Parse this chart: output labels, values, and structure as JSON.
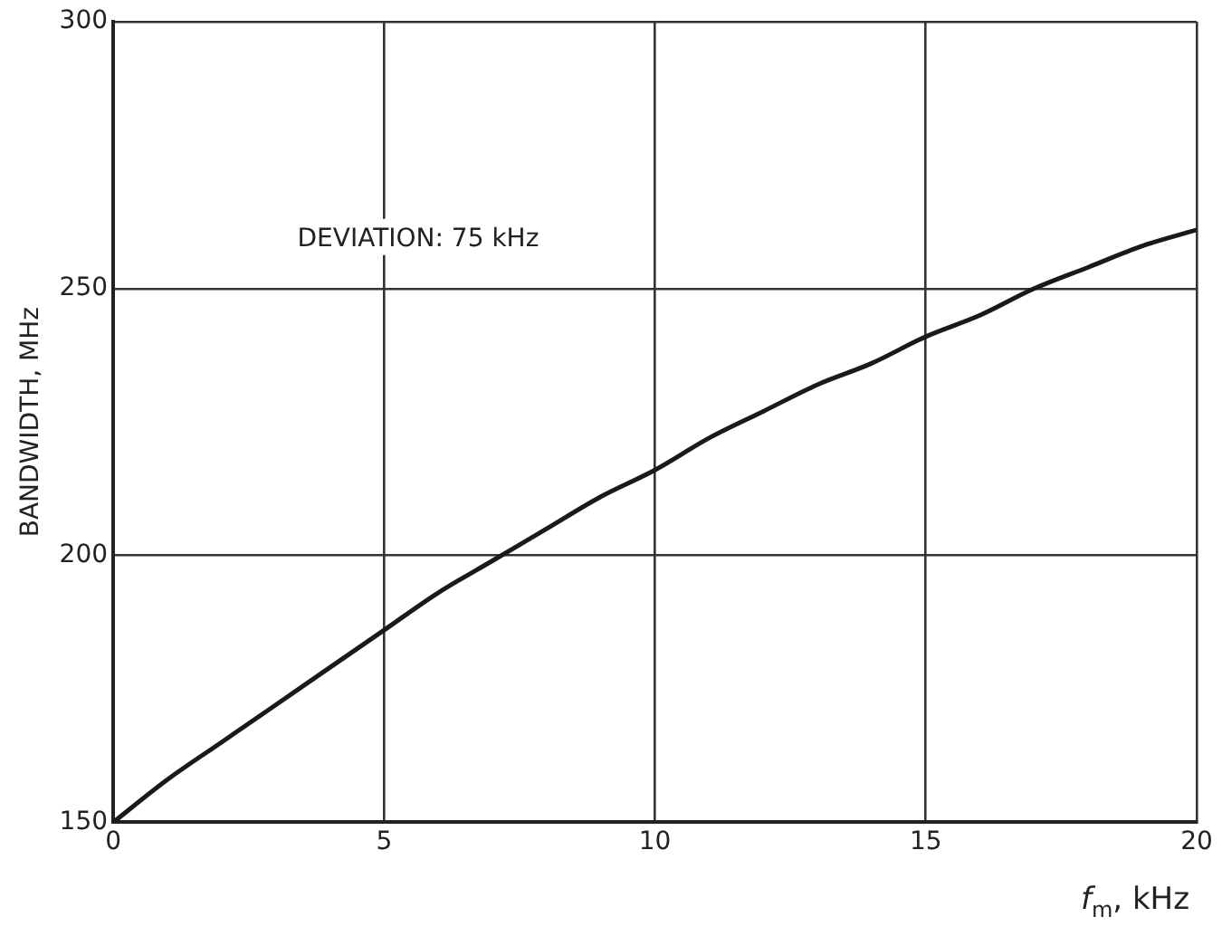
{
  "chart_data": {
    "type": "line",
    "xlabel": "f$_{m}$, kHz",
    "ylabel": "BANDWIDTH, MHz",
    "annotations": [
      "DEVIATION: 75 kHz"
    ],
    "x": [
      0,
      1,
      2,
      3,
      4,
      5,
      6,
      7,
      8,
      9,
      10,
      11,
      12,
      13,
      14,
      15,
      16,
      17,
      18,
      19,
      20
    ],
    "series": [
      {
        "color": "#1a1a1a",
        "values": [
          150,
          158,
          165,
          172,
          179,
          186,
          193,
          199,
          205,
          211,
          216,
          222,
          227,
          232,
          236,
          241,
          245,
          250,
          254,
          258,
          261
        ]
      }
    ],
    "xlim": [
      0,
      20
    ],
    "xticks": [
      0,
      5,
      10,
      15,
      20
    ],
    "ylim": [
      150,
      300
    ],
    "yticks": [
      150,
      200,
      250,
      300
    ],
    "grid": true,
    "legend": false,
    "marker": "none",
    "line_style": "solid"
  }
}
